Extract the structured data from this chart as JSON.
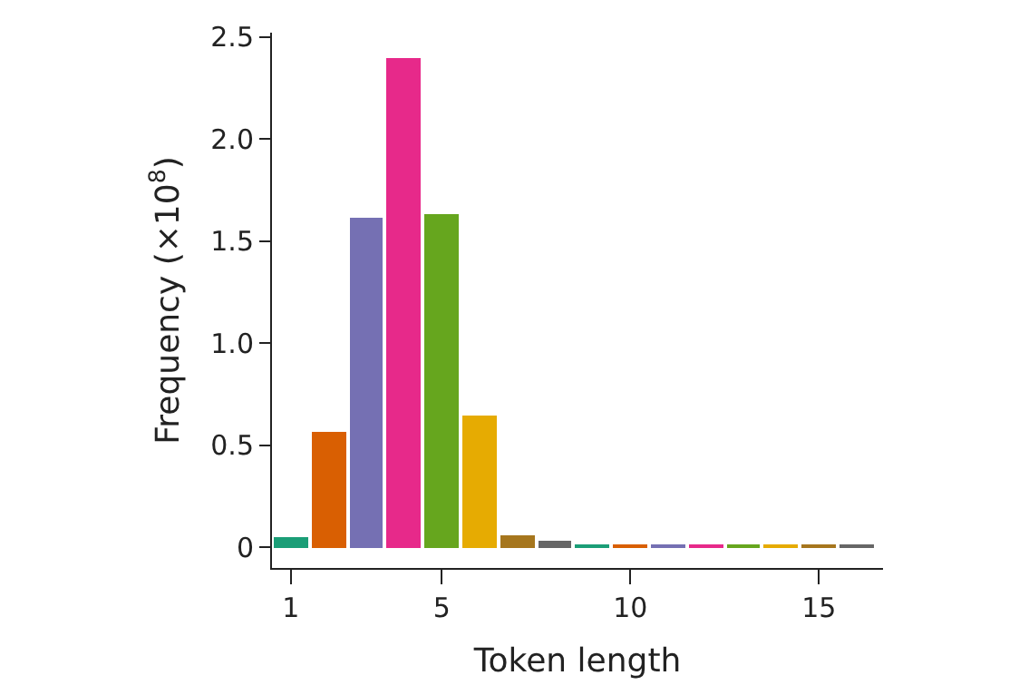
{
  "chart_data": {
    "type": "bar",
    "xlabel": "Token length",
    "ylabel": "Frequency (×10$^{8}$)",
    "x": [
      1,
      2,
      3,
      4,
      5,
      6,
      7,
      8,
      9,
      10,
      11,
      12,
      13,
      14,
      15,
      16
    ],
    "values": [
      0.05,
      0.57,
      1.61,
      2.4,
      1.63,
      0.65,
      0.06,
      0.03,
      0.01,
      0.01,
      0.01,
      0.01,
      0.01,
      0.01,
      0.01,
      0.01
    ],
    "colors": [
      "#1b9e77",
      "#d95f02",
      "#7570b3",
      "#e7298a",
      "#66a61e",
      "#e6ab02",
      "#a6761d",
      "#666666",
      "#1b9e77",
      "#d95f02",
      "#7570b3",
      "#e7298a",
      "#66a61e",
      "#e6ab02",
      "#a6761d",
      "#666666"
    ],
    "xlim": [
      0.5,
      16.7
    ],
    "xticks": [
      1,
      5,
      10,
      15
    ],
    "ylim": [
      -0.1,
      2.52
    ],
    "yticks": [
      0,
      {
        "value": 0.5,
        "label": "0.5"
      },
      {
        "value": 1,
        "label": "1.0"
      },
      {
        "value": 1.5,
        "label": "1.5"
      },
      {
        "value": 2,
        "label": "2.0"
      },
      {
        "value": 2.5,
        "label": "2.5"
      }
    ]
  }
}
